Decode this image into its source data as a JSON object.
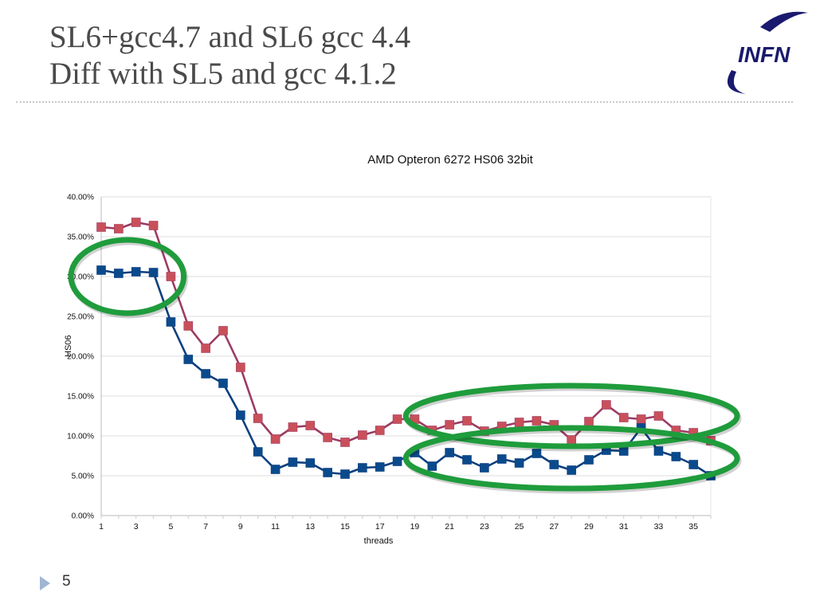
{
  "slide": {
    "title_line1": "SL6+gcc4.7 and SL6 gcc 4.4",
    "title_line2": "Diff with SL5 and gcc 4.1.2",
    "logo_text": "INFN",
    "page_number": "5",
    "colors": {
      "title": "#4a4a4a",
      "logo_blue": "#1a1a6e",
      "logo_light": "#6e6ecf",
      "highlight": "#1f9c3c"
    }
  },
  "chart_data": {
    "type": "line",
    "title": "AMD Opteron 6272 HS06 32bit",
    "xlabel": "threads",
    "ylabel": "HS06",
    "ylim": [
      0,
      40
    ],
    "y_ticks": [
      "0.00%",
      "5.00%",
      "10.00%",
      "15.00%",
      "20.00%",
      "25.00%",
      "30.00%",
      "35.00%",
      "40.00%"
    ],
    "y_tick_values": [
      0,
      5,
      10,
      15,
      20,
      25,
      30,
      35,
      40
    ],
    "x_tick_labels": [
      "1",
      "3",
      "5",
      "7",
      "9",
      "11",
      "13",
      "15",
      "17",
      "19",
      "21",
      "23",
      "25",
      "27",
      "29",
      "31",
      "33",
      "35"
    ],
    "x": [
      1,
      2,
      3,
      4,
      5,
      6,
      7,
      8,
      9,
      10,
      11,
      12,
      13,
      14,
      15,
      16,
      17,
      18,
      19,
      20,
      21,
      22,
      23,
      24,
      25,
      26,
      27,
      28,
      29,
      30,
      31,
      32,
      33,
      34,
      35,
      36
    ],
    "grid": true,
    "legend": "none",
    "series": [
      {
        "name": "red-series",
        "color": "#9c3b63",
        "marker_color": "#c9505a",
        "values": [
          36.2,
          36.0,
          36.8,
          36.4,
          30.0,
          23.8,
          21.0,
          23.2,
          18.6,
          12.2,
          9.6,
          11.1,
          11.3,
          9.8,
          9.2,
          10.1,
          10.7,
          12.1,
          12.1,
          10.7,
          11.4,
          11.9,
          10.6,
          11.2,
          11.7,
          11.9,
          11.4,
          9.5,
          11.8,
          13.9,
          12.3,
          12.1,
          12.5,
          10.7,
          10.4,
          9.4
        ]
      },
      {
        "name": "blue-series",
        "color": "#0b3f7e",
        "marker_color": "#0a4a8c",
        "values": [
          30.8,
          30.4,
          30.6,
          30.5,
          24.3,
          19.6,
          17.8,
          16.6,
          12.6,
          8.0,
          5.8,
          6.7,
          6.6,
          5.4,
          5.2,
          6.0,
          6.1,
          6.8,
          7.9,
          6.2,
          7.9,
          7.0,
          6.0,
          7.1,
          6.6,
          7.8,
          6.4,
          5.7,
          7.0,
          8.2,
          8.1,
          11.0,
          8.1,
          7.4,
          6.4,
          5.0
        ]
      }
    ],
    "annotations": [
      {
        "type": "ellipse",
        "label": "highlight-threads-1-4",
        "x_range": [
          1,
          4
        ],
        "y_center": 30.0
      },
      {
        "type": "ellipse",
        "label": "highlight-red-threads-20-36",
        "x_range": [
          20,
          36
        ],
        "y_center": 12.3
      },
      {
        "type": "ellipse",
        "label": "highlight-blue-threads-20-36",
        "x_range": [
          20,
          36
        ],
        "y_center": 7.0
      }
    ]
  }
}
